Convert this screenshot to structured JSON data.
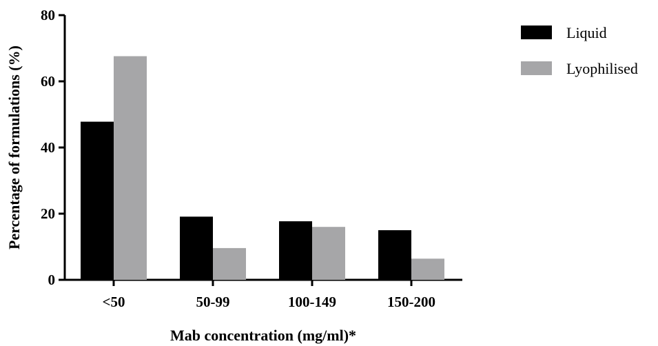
{
  "chart_data": {
    "type": "bar",
    "title": "",
    "xlabel": "Mab concentration (mg/ml)*",
    "ylabel": "Percentage of formulations (%)",
    "categories": [
      "<50",
      "50-99",
      "100-149",
      "150-200"
    ],
    "series": [
      {
        "name": "Liquid",
        "values": [
          47.8,
          19.1,
          17.7,
          15.0
        ],
        "color": "#000000"
      },
      {
        "name": "Lyophilised",
        "values": [
          67.6,
          9.6,
          16.0,
          6.4
        ],
        "color": "#a6a6a8"
      }
    ],
    "ylim": [
      0,
      80
    ],
    "yticks": [
      "0",
      "20",
      "40",
      "60",
      "80"
    ],
    "grid": false,
    "legend_position": "top-right"
  }
}
